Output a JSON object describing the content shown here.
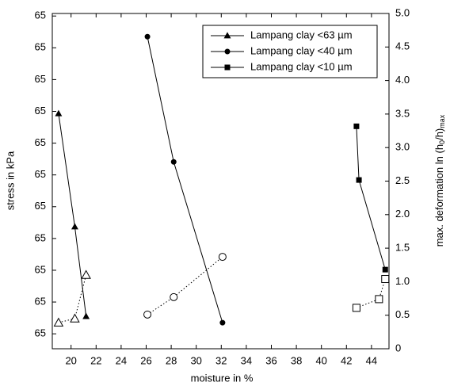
{
  "chart_data": {
    "type": "line",
    "x_label": "moisture in %",
    "y_label": "stress in kPa",
    "y2_label": [
      "max. deformation  ln (h",
      "0",
      "/h)",
      "max"
    ],
    "xlim": [
      18.5,
      45.4
    ],
    "xticks": [
      20,
      22,
      24,
      26,
      28,
      30,
      32,
      34,
      36,
      38,
      40,
      42,
      44
    ],
    "ylim": [
      -0.47,
      10.08
    ],
    "yticks": [
      {
        "value": 0,
        "label": "65"
      },
      {
        "value": 1,
        "label": "65"
      },
      {
        "value": 2,
        "label": "65"
      },
      {
        "value": 3,
        "label": "65"
      },
      {
        "value": 4,
        "label": "65"
      },
      {
        "value": 5,
        "label": "65"
      },
      {
        "value": 6,
        "label": "65"
      },
      {
        "value": 7,
        "label": "65"
      },
      {
        "value": 8,
        "label": "65"
      },
      {
        "value": 9,
        "label": "65"
      },
      {
        "value": 10,
        "label": "65"
      }
    ],
    "y2lim": [
      0,
      5
    ],
    "y2ticks": [
      0,
      0.5,
      {
        "value": 1,
        "label": "1.0"
      },
      1.5,
      {
        "value": 2,
        "label": "2.0"
      },
      2.5,
      {
        "value": 3,
        "label": "3.0"
      },
      3.5,
      {
        "value": 4,
        "label": "4.0"
      },
      4.5,
      {
        "value": 5,
        "label": "5.0"
      }
    ],
    "legend": "upper right",
    "series": [
      {
        "name": "Lampang clay <63 µm",
        "color": "#000000",
        "marker": "triangle",
        "filled": true,
        "line_style": "solid",
        "x": [
          19.0,
          20.3,
          21.2
        ],
        "values": [
          6.93,
          3.37,
          0.55
        ]
      },
      {
        "name": "Lampang clay <40 µm",
        "color": "#000000",
        "marker": "circle",
        "filled": true,
        "line_style": "solid",
        "x": [
          26.1,
          28.2,
          32.1
        ],
        "values": [
          9.35,
          5.41,
          0.35
        ]
      },
      {
        "name": "Lampang clay <10 µm",
        "color": "#000000",
        "marker": "square",
        "filled": true,
        "line_style": "solid",
        "x": [
          42.8,
          43.0,
          45.1
        ],
        "values": [
          6.53,
          4.84,
          2.02
        ]
      },
      {
        "color": "#000000",
        "marker": "triangle",
        "filled": false,
        "line_style": "dotted",
        "axis": "y2",
        "x": [
          19.0,
          20.3,
          21.2
        ],
        "values": [
          0.39,
          0.45,
          1.1
        ]
      },
      {
        "color": "#000000",
        "marker": "circle",
        "filled": false,
        "line_style": "dotted",
        "axis": "y2",
        "x": [
          26.1,
          28.2,
          32.1
        ],
        "values": [
          0.51,
          0.77,
          1.37
        ]
      },
      {
        "color": "#000000",
        "marker": "square",
        "filled": false,
        "line_style": "dotted",
        "axis": "y2",
        "x": [
          42.8,
          44.6,
          45.1
        ],
        "values": [
          0.61,
          0.74,
          1.04
        ]
      }
    ]
  }
}
